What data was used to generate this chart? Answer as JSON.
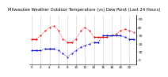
{
  "title": "Milwaukee Weather Outdoor Temperature (vs) Dew Point (Last 24 Hours)",
  "title_fontsize": 3.8,
  "background_color": "#ffffff",
  "temp_color": "#dd0000",
  "dew_color": "#0000cc",
  "grid_color": "#bbbbbb",
  "hours": [
    0,
    1,
    2,
    3,
    4,
    5,
    6,
    7,
    8,
    9,
    10,
    11,
    12,
    13,
    14,
    15,
    16,
    17,
    18,
    19,
    20,
    21,
    22,
    23
  ],
  "temp_values": [
    26,
    26,
    30,
    36,
    40,
    42,
    36,
    26,
    22,
    22,
    26,
    36,
    40,
    36,
    28,
    28,
    28,
    28,
    30,
    32,
    36,
    38,
    36,
    34
  ],
  "dew_values": [
    12,
    12,
    12,
    14,
    14,
    14,
    12,
    8,
    4,
    8,
    12,
    16,
    18,
    20,
    22,
    22,
    30,
    30,
    30,
    30,
    30,
    28,
    26,
    26
  ],
  "ylim": [
    -5,
    55
  ],
  "yticks": [
    0,
    10,
    20,
    30,
    40,
    50
  ],
  "ylabel_fontsize": 3.2,
  "xlabel_fontsize": 3.0,
  "xtick_step": 2,
  "num_hours": 24
}
